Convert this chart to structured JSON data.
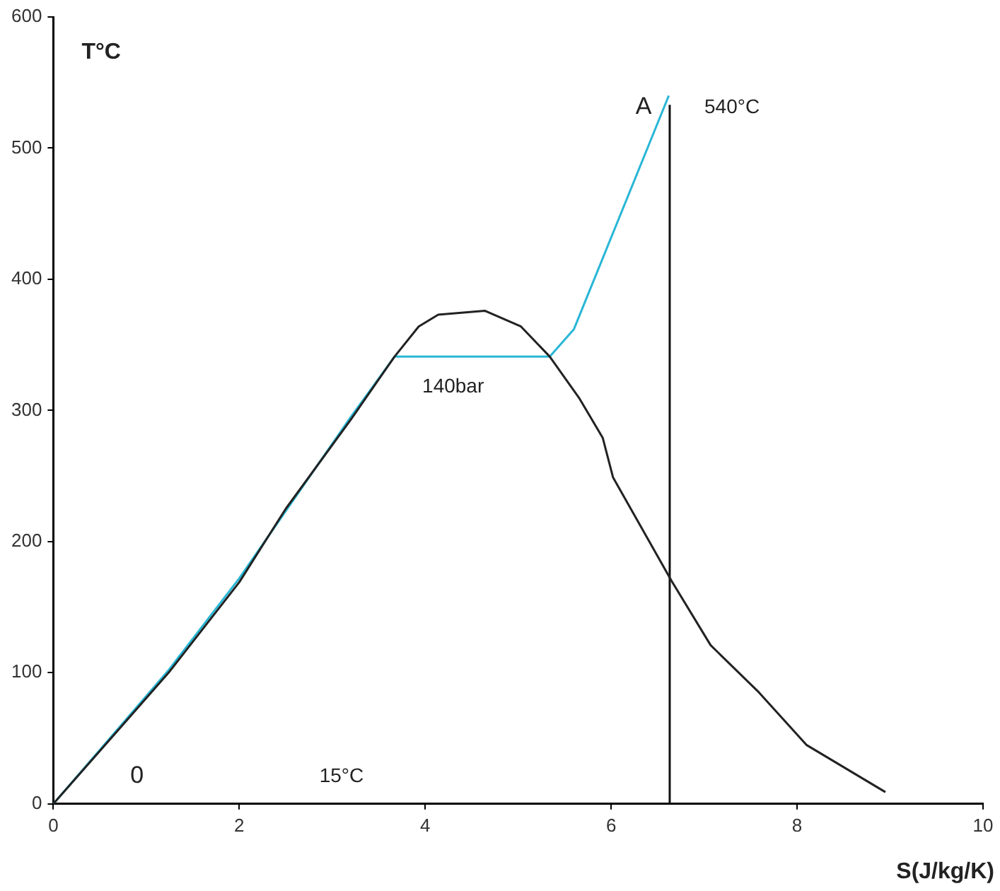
{
  "chart_data": {
    "type": "line",
    "xlabel": "S(J/kg/K)",
    "ylabel": "T°C",
    "xlim": [
      0,
      10
    ],
    "xticks": [
      0,
      2,
      4,
      6,
      8,
      10
    ],
    "ylim": [
      0,
      600
    ],
    "yticks": [
      0,
      100,
      200,
      300,
      400,
      500,
      600
    ],
    "grid": false,
    "legend": false,
    "marker": "none",
    "line_style": "solid",
    "series": [
      {
        "color": "#222222",
        "x": [
          0,
          1.24,
          2,
          2.5,
          3.2,
          3.67,
          3.93,
          4.14,
          4.64,
          5.03,
          5.34,
          5.66,
          5.91,
          6.02,
          6.65,
          7.07,
          7.59,
          8.1,
          8.95
        ],
        "values": [
          0,
          100,
          169,
          225,
          293,
          341,
          364,
          373,
          376,
          364,
          341,
          309,
          279,
          249,
          170,
          121,
          85,
          45,
          9
        ]
      },
      {
        "color": "#29b6d6",
        "x": [
          0,
          1.24,
          2,
          3.2,
          3.67,
          5.34,
          5.6,
          6.62
        ],
        "values": [
          0,
          102,
          172,
          295,
          341,
          341,
          362,
          540
        ]
      },
      {
        "color": "#111111",
        "x": [
          6.63,
          6.63
        ],
        "values": [
          0,
          533
        ]
      }
    ],
    "annotations": [
      "A",
      "540°C",
      "140bar",
      "0",
      "15°C"
    ]
  }
}
